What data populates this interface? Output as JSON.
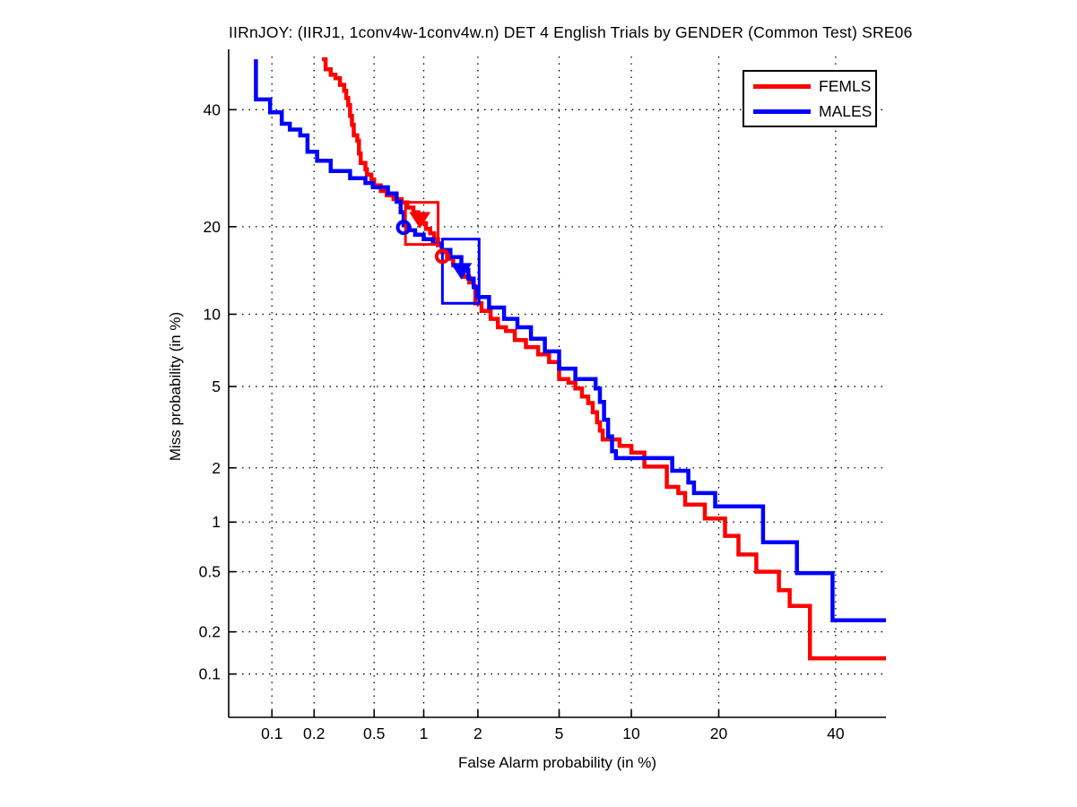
{
  "chart_data": {
    "type": "line",
    "subtype": "DET-curve (normal-deviate probit scale, stepped)",
    "title": "IIRnJOY: (IIRJ1, 1conv4w-1conv4w.n) DET 4 English Trials by GENDER (Common Test) SRE06",
    "xlabel": "False Alarm probability (in %)",
    "ylabel": "Miss probability (in %)",
    "x_ticks_percent": [
      0.1,
      0.2,
      0.5,
      1,
      2,
      5,
      10,
      20,
      40
    ],
    "y_ticks_percent": [
      0.1,
      0.2,
      0.5,
      1,
      2,
      5,
      10,
      20,
      40
    ],
    "x_range_percent": [
      0.047,
      50
    ],
    "y_range_percent": [
      0.047,
      52
    ],
    "grid": "dotted black, at every tick, both axes",
    "grid_color": "#000000",
    "axis_color": "#000000",
    "background": "#ffffff",
    "legend": {
      "position": "top-right",
      "border_color": "#000000",
      "entries": [
        {
          "label": "FEMLS",
          "color": "#ff0000"
        },
        {
          "label": "MALES",
          "color": "#0000ff"
        }
      ]
    },
    "series": [
      {
        "name": "FEMLS",
        "color": "#ff0000",
        "line_width": 4.5,
        "points": [
          [
            0.227,
            50
          ],
          [
            0.24,
            48
          ],
          [
            0.26,
            46.9
          ],
          [
            0.28,
            46.2
          ],
          [
            0.3,
            44.9
          ],
          [
            0.32,
            43.7
          ],
          [
            0.33,
            42.3
          ],
          [
            0.34,
            40.9
          ],
          [
            0.35,
            38.8
          ],
          [
            0.36,
            37.1
          ],
          [
            0.37,
            35.1
          ],
          [
            0.39,
            34.1
          ],
          [
            0.4,
            31.8
          ],
          [
            0.41,
            30.1
          ],
          [
            0.44,
            29.0
          ],
          [
            0.45,
            28.1
          ],
          [
            0.48,
            27.3
          ],
          [
            0.5,
            26.3
          ],
          [
            0.55,
            25.4
          ],
          [
            0.6,
            24.7
          ],
          [
            0.66,
            24.1
          ],
          [
            0.74,
            23.6
          ],
          [
            0.8,
            22.8
          ],
          [
            0.87,
            22.1
          ],
          [
            0.93,
            21.3
          ],
          [
            0.98,
            20.5
          ],
          [
            1.03,
            19.7
          ],
          [
            1.09,
            19.1
          ],
          [
            1.15,
            18.3
          ],
          [
            1.21,
            17.5
          ],
          [
            1.27,
            16.6
          ],
          [
            1.36,
            15.8
          ],
          [
            1.47,
            15.0
          ],
          [
            1.57,
            14.4
          ],
          [
            1.68,
            13.7
          ],
          [
            1.8,
            13.1
          ],
          [
            1.9,
            12.7
          ],
          [
            1.94,
            11.0
          ],
          [
            2.09,
            10.3
          ],
          [
            2.33,
            9.6
          ],
          [
            2.54,
            8.9
          ],
          [
            2.79,
            8.6
          ],
          [
            3.09,
            7.9
          ],
          [
            3.5,
            7.4
          ],
          [
            4.0,
            6.9
          ],
          [
            4.5,
            6.4
          ],
          [
            5.0,
            5.4
          ],
          [
            5.5,
            5.2
          ],
          [
            5.9,
            4.9
          ],
          [
            6.3,
            4.5
          ],
          [
            6.7,
            4.2
          ],
          [
            7.0,
            3.8
          ],
          [
            7.3,
            3.4
          ],
          [
            7.5,
            3.1
          ],
          [
            7.7,
            2.8
          ],
          [
            9.0,
            2.6
          ],
          [
            10.0,
            2.4
          ],
          [
            11.2,
            2.03
          ],
          [
            13.5,
            1.58
          ],
          [
            14.8,
            1.46
          ],
          [
            15.6,
            1.26
          ],
          [
            18.1,
            1.05
          ],
          [
            20.9,
            0.83
          ],
          [
            22.9,
            0.64
          ],
          [
            25.7,
            0.5
          ],
          [
            29.5,
            0.38
          ],
          [
            31.4,
            0.3
          ],
          [
            35.1,
            0.13
          ],
          [
            50,
            0.13
          ]
        ]
      },
      {
        "name": "MALES",
        "color": "#0000ff",
        "line_width": 4.5,
        "points": [
          [
            0.076,
            50
          ],
          [
            0.076,
            42
          ],
          [
            0.097,
            39.5
          ],
          [
            0.118,
            37.3
          ],
          [
            0.135,
            36.2
          ],
          [
            0.16,
            35.1
          ],
          [
            0.18,
            32.1
          ],
          [
            0.21,
            30.5
          ],
          [
            0.26,
            28.7
          ],
          [
            0.35,
            27.5
          ],
          [
            0.44,
            26.7
          ],
          [
            0.49,
            26.0
          ],
          [
            0.61,
            25.0
          ],
          [
            0.69,
            23.7
          ],
          [
            0.73,
            22.1
          ],
          [
            0.76,
            20.2
          ],
          [
            0.8,
            19.5
          ],
          [
            0.89,
            18.9
          ],
          [
            1.0,
            18.3
          ],
          [
            1.13,
            17.7
          ],
          [
            1.27,
            16.9
          ],
          [
            1.42,
            16.0
          ],
          [
            1.63,
            14.5
          ],
          [
            1.78,
            13.5
          ],
          [
            1.9,
            12.6
          ],
          [
            1.98,
            11.6
          ],
          [
            2.29,
            10.6
          ],
          [
            2.73,
            9.6
          ],
          [
            3.18,
            8.9
          ],
          [
            3.7,
            8.0
          ],
          [
            4.3,
            7.1
          ],
          [
            5.0,
            6.0
          ],
          [
            5.9,
            5.4
          ],
          [
            7.2,
            4.9
          ],
          [
            7.5,
            4.25
          ],
          [
            7.8,
            3.5
          ],
          [
            8.1,
            2.9
          ],
          [
            8.4,
            2.44
          ],
          [
            8.7,
            2.25
          ],
          [
            14.1,
            1.93
          ],
          [
            16.0,
            1.67
          ],
          [
            16.7,
            1.46
          ],
          [
            19.5,
            1.23
          ],
          [
            26.8,
            0.76
          ],
          [
            32.7,
            0.49
          ],
          [
            39.4,
            0.24
          ],
          [
            50,
            0.24
          ]
        ]
      }
    ],
    "markers": [
      {
        "series": "MALES",
        "shape": "open-circle",
        "fa": 0.76,
        "miss": 19.9,
        "color": "#0000ff"
      },
      {
        "series": "FEMLS",
        "shape": "open-circle",
        "fa": 1.28,
        "miss": 16.1,
        "color": "#ff0000"
      },
      {
        "series": "FEMLS",
        "shape": "filled-triangle-down",
        "fa": 0.95,
        "miss": 21.0,
        "color": "#ff0000"
      },
      {
        "series": "MALES",
        "shape": "filled-triangle-down",
        "fa": 1.63,
        "miss": 14.4,
        "color": "#0000ff"
      }
    ],
    "confidence_boxes": [
      {
        "series": "FEMLS",
        "fa": [
          0.78,
          1.21
        ],
        "miss": [
          17.6,
          23.6
        ],
        "color": "#ff0000"
      },
      {
        "series": "MALES",
        "fa": [
          1.28,
          2.03
        ],
        "miss": [
          11.0,
          18.3
        ],
        "color": "#0000ff"
      }
    ]
  }
}
